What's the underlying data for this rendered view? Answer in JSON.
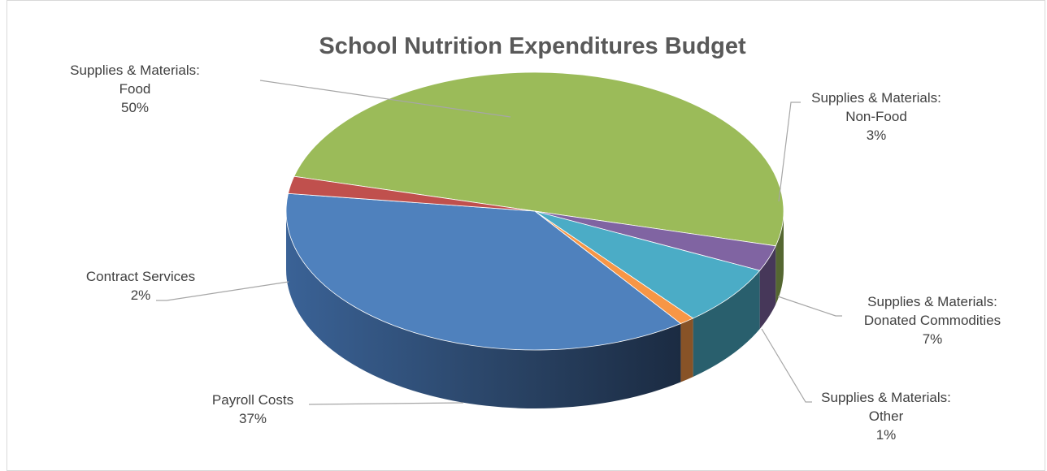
{
  "chart_data": {
    "type": "pie",
    "style": "3d",
    "title": "School Nutrition Expenditures Budget",
    "slices": [
      {
        "category": "Supplies & Materials:",
        "name": "Food",
        "value": 50,
        "label": "50%",
        "color": "#9BBB59"
      },
      {
        "category": "Supplies & Materials:",
        "name": "Non-Food",
        "value": 3,
        "label": "3%",
        "color": "#8064A2"
      },
      {
        "category": "Supplies & Materials:",
        "name": "Donated Commodities",
        "value": 7,
        "label": "7%",
        "color": "#4BACC6"
      },
      {
        "category": "Supplies & Materials:",
        "name": "Other",
        "value": 1,
        "label": "1%",
        "color": "#F79646"
      },
      {
        "category": "",
        "name": "Payroll Costs",
        "value": 37,
        "label": "37%",
        "color": "#4F81BD"
      },
      {
        "category": "",
        "name": "Contract Services",
        "value": 2,
        "label": "2%",
        "color": "#C0504D"
      }
    ],
    "legend": "none",
    "data_labels": "outside with leader lines"
  }
}
